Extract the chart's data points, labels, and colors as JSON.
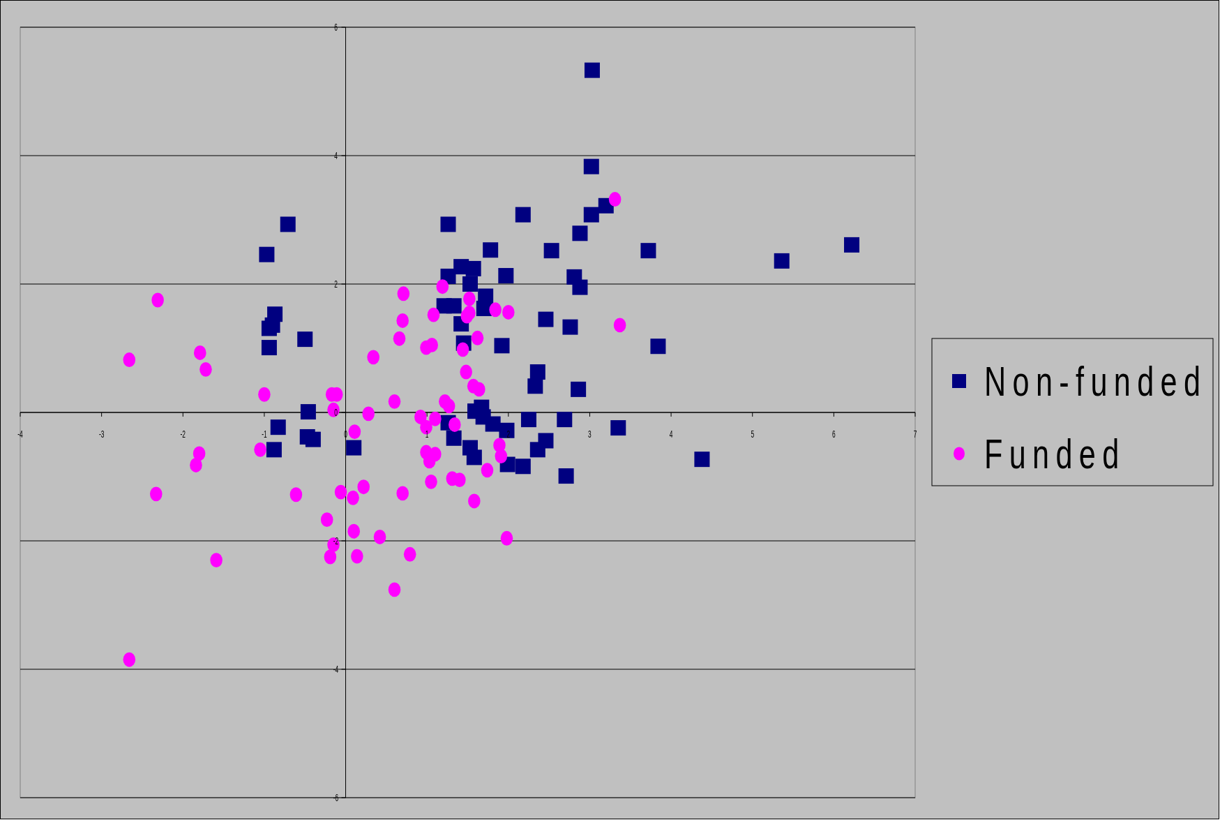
{
  "chart_data": {
    "type": "scatter",
    "xlim": [
      -4,
      7
    ],
    "xticks": [
      -4,
      -3,
      -2,
      -1,
      0,
      1,
      2,
      3,
      4,
      5,
      6,
      7
    ],
    "ylim": [
      -6,
      6
    ],
    "yticks": [
      -6,
      -4,
      -2,
      0,
      2,
      4,
      6
    ],
    "grid": "y",
    "legend": "right",
    "series": [
      {
        "name": "Non-funded",
        "color": "#000080",
        "marker": "square",
        "x": [
          3.03,
          3.02,
          3.2,
          3.02,
          2.18,
          -0.71,
          1.26,
          -0.97,
          1.78,
          2.53,
          2.88,
          3.72,
          5.36,
          6.22,
          1.42,
          1.57,
          1.26,
          1.97,
          1.53,
          2.81,
          2.88,
          1.72,
          1.7,
          1.21,
          1.33,
          -0.87,
          -0.9,
          -0.94,
          1.42,
          2.46,
          2.76,
          -0.5,
          1.45,
          1.92,
          3.84,
          -0.94,
          2.36,
          2.33,
          2.86,
          -0.46,
          1.67,
          1.59,
          1.69,
          1.81,
          1.26,
          2.25,
          2.69,
          3.35,
          -0.83,
          1.98,
          1.33,
          -0.47,
          -0.4,
          0.1,
          -0.88,
          1.53,
          2.46,
          2.36,
          1.58,
          1.99,
          2.18,
          2.71,
          4.38
        ],
        "values": [
          5.33,
          3.83,
          3.22,
          3.08,
          3.08,
          2.93,
          2.93,
          2.46,
          2.53,
          2.52,
          2.79,
          2.52,
          2.36,
          2.61,
          2.27,
          2.24,
          2.12,
          2.13,
          2.0,
          2.11,
          1.95,
          1.81,
          1.62,
          1.66,
          1.66,
          1.53,
          1.36,
          1.31,
          1.38,
          1.45,
          1.33,
          1.14,
          1.08,
          1.04,
          1.03,
          1.01,
          0.63,
          0.41,
          0.36,
          0.01,
          0.08,
          0.02,
          -0.07,
          -0.18,
          -0.16,
          -0.11,
          -0.11,
          -0.24,
          -0.23,
          -0.28,
          -0.4,
          -0.38,
          -0.42,
          -0.55,
          -0.58,
          -0.55,
          -0.44,
          -0.58,
          -0.7,
          -0.81,
          -0.84,
          -0.99,
          -0.73
        ]
      },
      {
        "name": "Funded",
        "color": "#ff00ff",
        "marker": "circle",
        "x": [
          3.31,
          -2.31,
          1.19,
          0.71,
          1.52,
          1.08,
          1.52,
          1.49,
          1.84,
          2.0,
          0.7,
          3.37,
          1.62,
          0.66,
          1.06,
          0.99,
          1.44,
          -1.79,
          -2.66,
          -1.72,
          0.34,
          1.48,
          1.57,
          1.64,
          -1.0,
          -0.17,
          -0.11,
          -0.15,
          0.6,
          1.22,
          1.27,
          0.28,
          0.92,
          1.1,
          1.34,
          0.99,
          0.11,
          -1.05,
          -1.8,
          -1.84,
          0.99,
          1.1,
          1.03,
          1.89,
          1.91,
          1.74,
          1.31,
          1.4,
          1.05,
          0.22,
          -2.33,
          -0.61,
          0.7,
          -0.06,
          0.09,
          1.58,
          -0.23,
          0.1,
          0.42,
          1.98,
          -0.15,
          -0.19,
          0.14,
          0.79,
          -1.59,
          0.6,
          -2.66
        ],
        "values": [
          3.32,
          1.75,
          1.96,
          1.85,
          1.77,
          1.52,
          1.55,
          1.5,
          1.6,
          1.56,
          1.43,
          1.36,
          1.16,
          1.15,
          1.05,
          1.01,
          0.98,
          0.93,
          0.82,
          0.67,
          0.86,
          0.63,
          0.41,
          0.36,
          0.28,
          0.28,
          0.28,
          0.04,
          0.17,
          0.17,
          0.1,
          -0.02,
          -0.07,
          -0.1,
          -0.19,
          -0.23,
          -0.3,
          -0.58,
          -0.64,
          -0.82,
          -0.62,
          -0.65,
          -0.76,
          -0.51,
          -0.68,
          -0.9,
          -1.03,
          -1.05,
          -1.08,
          -1.16,
          -1.27,
          -1.28,
          -1.26,
          -1.24,
          -1.33,
          -1.38,
          -1.67,
          -1.85,
          -1.94,
          -1.96,
          -2.06,
          -2.25,
          -2.24,
          -2.21,
          -2.3,
          -2.76,
          -3.85
        ]
      }
    ]
  }
}
